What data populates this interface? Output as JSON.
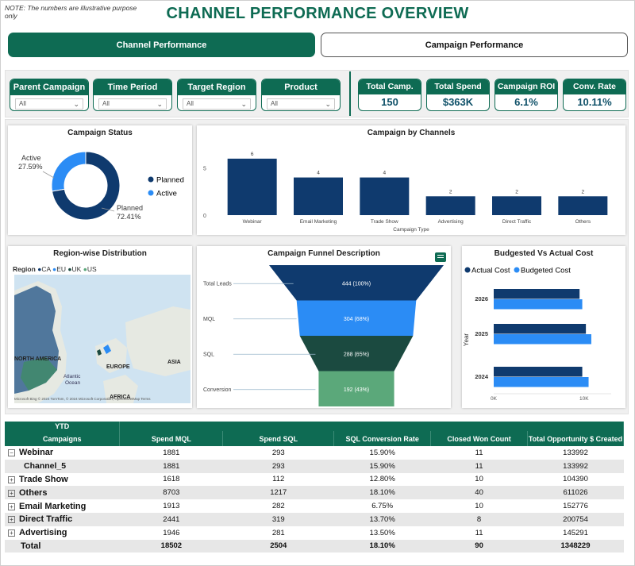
{
  "note": "NOTE: The numbers are illustrative purpose only",
  "title": "CHANNEL PERFORMANCE OVERVIEW",
  "tabs": {
    "active": "Channel Performance",
    "inactive": "Campaign Performance"
  },
  "filters": [
    {
      "label": "Parent Campaign",
      "value": "All"
    },
    {
      "label": "Time Period",
      "value": "All"
    },
    {
      "label": "Target Region",
      "value": "All"
    },
    {
      "label": "Product",
      "value": "All"
    }
  ],
  "kpis": [
    {
      "label": "Total Camp.",
      "value": "150"
    },
    {
      "label": "Total Spend",
      "value": "$363K"
    },
    {
      "label": "Campaign ROI",
      "value": "6.1%"
    },
    {
      "label": "Conv. Rate",
      "value": "10.11%"
    }
  ],
  "colors": {
    "brand": "#0e6b53",
    "navy": "#0f3a6e",
    "blue": "#2b8cf5",
    "dark_green": "#1b4a40",
    "light_green": "#5ba87a"
  },
  "campaign_status": {
    "title": "Campaign Status",
    "active_label": "Active",
    "active_value": "27.59%",
    "planned_label": "Planned",
    "planned_value": "72.41%",
    "legend": [
      "Planned",
      "Active"
    ]
  },
  "chart_data": [
    {
      "type": "pie",
      "title": "Campaign Status",
      "categories": [
        "Planned",
        "Active"
      ],
      "values": [
        72.41,
        27.59
      ]
    },
    {
      "type": "bar",
      "title": "Campaign by Channels",
      "xlabel": "Campaign Type",
      "ylabel": "",
      "categories": [
        "Webinar",
        "Email Marketing",
        "Trade Show",
        "Advertising",
        "Direct Traffic",
        "Others"
      ],
      "values": [
        6,
        4,
        4,
        2,
        2,
        2
      ],
      "yticks": [
        "0",
        "5"
      ],
      "ylim": [
        0,
        7
      ]
    },
    {
      "type": "bar",
      "title": "Campaign Funnel Description",
      "categories": [
        "Total Leads",
        "MQL",
        "SQL",
        "Conversion"
      ],
      "values": [
        444,
        304,
        288,
        192
      ],
      "value_labels": [
        "444 (100%)",
        "304 (68%)",
        "288 (65%)",
        "192 (43%)"
      ]
    },
    {
      "type": "bar",
      "title": "Budgested Vs Actual Cost",
      "ylabel": "Year",
      "categories": [
        "2026",
        "2025",
        "2024"
      ],
      "series": [
        {
          "name": "Actual Cost",
          "values": [
            9.5,
            10.2,
            9.8
          ]
        },
        {
          "name": "Budgeted Cost",
          "values": [
            9.8,
            10.8,
            10.5
          ]
        }
      ],
      "xticks": [
        "0K",
        "10K"
      ],
      "xlim": [
        0,
        13
      ]
    }
  ],
  "region": {
    "title": "Region-wise Distribution",
    "legend_title": "Region",
    "legend": [
      "CA",
      "EU",
      "UK",
      "US"
    ],
    "labels": [
      "NORTH AMERICA",
      "EUROPE",
      "ASIA",
      "AFRICA",
      "Atlantic",
      "Ocean"
    ],
    "attribution": "© 2024 TomTom, © 2024 Microsoft Corporation, OpenStreetMap  Terms",
    "ms_logo": "Microsoft Bing"
  },
  "table": {
    "group_header": "YTD",
    "columns": [
      "Campaigns",
      "Spend MQL",
      "Spend SQL",
      "SQL Conversion Rate",
      "Closed Won Count",
      "Total Opportunity $ Created"
    ],
    "rows": [
      {
        "name": "Webinar",
        "expander": "−",
        "cells": [
          "1881",
          "293",
          "15.90%",
          "11",
          "133992"
        ]
      },
      {
        "name": "Channel_5",
        "expander": "",
        "cells": [
          "1881",
          "293",
          "15.90%",
          "11",
          "133992"
        ]
      },
      {
        "name": "Trade Show",
        "expander": "+",
        "cells": [
          "1618",
          "112",
          "12.80%",
          "10",
          "104390"
        ]
      },
      {
        "name": "Others",
        "expander": "+",
        "cells": [
          "8703",
          "1217",
          "18.10%",
          "40",
          "611026"
        ]
      },
      {
        "name": "Email Marketing",
        "expander": "+",
        "cells": [
          "1913",
          "282",
          "6.75%",
          "10",
          "152776"
        ]
      },
      {
        "name": "Direct Traffic",
        "expander": "+",
        "cells": [
          "2441",
          "319",
          "13.70%",
          "8",
          "200754"
        ]
      },
      {
        "name": "Advertising",
        "expander": "+",
        "cells": [
          "1946",
          "281",
          "13.50%",
          "11",
          "145291"
        ]
      },
      {
        "name": "Total",
        "expander": "",
        "cells": [
          "18502",
          "2504",
          "18.10%",
          "90",
          "1348229"
        ]
      }
    ]
  }
}
